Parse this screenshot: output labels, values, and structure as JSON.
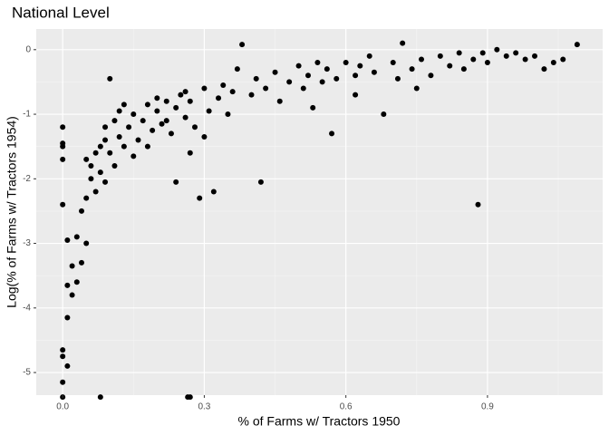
{
  "chart_data": {
    "type": "scatter",
    "title": "National Level",
    "x_label": "% of Farms w/ Tractors 1950",
    "y_label": "Log(% of Farms w/ Tractors 1954)",
    "color": "#000000",
    "xlim": [
      -0.056,
      1.144
    ],
    "ylim": [
      -5.35,
      0.32
    ],
    "xticks": [
      {
        "value": 0,
        "label": "0.0"
      },
      0.3,
      0.6,
      0.9
    ],
    "yticks": [
      0,
      -1,
      -2,
      -3,
      -4,
      -5
    ],
    "x_minor_grid": [
      0.15,
      0.45,
      0.75,
      1.05
    ],
    "y_minor_grid": [
      -0.5,
      -1.5,
      -2.5,
      -3.5,
      -4.5
    ],
    "grid": true,
    "x": [
      0.0,
      0.0,
      0.0,
      0.0,
      0.0,
      0.0,
      0.0,
      0.01,
      0.0,
      0.0,
      0.08,
      0.265,
      0.27,
      0.01,
      0.01,
      0.02,
      0.02,
      0.03,
      0.01,
      0.03,
      0.04,
      0.05,
      0.04,
      0.05,
      0.06,
      0.06,
      0.07,
      0.08,
      0.08,
      0.09,
      0.09,
      0.1,
      0.11,
      0.12,
      0.12,
      0.13,
      0.14,
      0.15,
      0.16,
      0.17,
      0.18,
      0.19,
      0.2,
      0.21,
      0.22,
      0.23,
      0.24,
      0.25,
      0.26,
      0.27,
      0.28,
      0.29,
      0.32,
      0.3,
      0.31,
      0.33,
      0.34,
      0.35,
      0.36,
      0.37,
      0.38,
      0.4,
      0.41,
      0.42,
      0.43,
      0.45,
      0.46,
      0.48,
      0.5,
      0.51,
      0.52,
      0.54,
      0.55,
      0.56,
      0.57,
      0.58,
      0.6,
      0.62,
      0.63,
      0.65,
      0.66,
      0.68,
      0.7,
      0.71,
      0.72,
      0.74,
      0.76,
      0.78,
      0.8,
      0.82,
      0.84,
      0.85,
      0.87,
      0.88,
      0.89,
      0.9,
      0.92,
      0.94,
      0.96,
      0.98,
      1.0,
      1.02,
      1.04,
      1.06,
      1.09,
      0.05,
      0.07,
      0.13,
      0.15,
      0.18,
      0.2,
      0.22,
      0.24,
      0.26,
      0.11,
      0.09,
      0.1,
      0.62,
      0.75,
      0.53,
      0.3,
      0.27
    ],
    "values": [
      -1.2,
      -1.45,
      -1.5,
      -1.7,
      -2.4,
      -4.65,
      -4.75,
      -4.9,
      -5.15,
      -5.38,
      -5.38,
      -5.38,
      -5.38,
      -4.15,
      -3.65,
      -3.8,
      -3.35,
      -3.6,
      -2.95,
      -2.9,
      -2.5,
      -2.3,
      -3.3,
      -3.0,
      -2.0,
      -1.8,
      -1.6,
      -1.9,
      -1.5,
      -1.4,
      -1.2,
      -1.6,
      -1.1,
      -1.35,
      -0.95,
      -1.5,
      -1.2,
      -1.0,
      -1.4,
      -1.1,
      -0.85,
      -1.25,
      -0.95,
      -1.15,
      -0.8,
      -1.3,
      -0.9,
      -0.7,
      -1.05,
      -0.8,
      -1.2,
      -2.3,
      -2.2,
      -0.6,
      -0.95,
      -0.75,
      -0.55,
      -1.0,
      -0.65,
      -0.3,
      0.08,
      -0.7,
      -0.45,
      -2.05,
      -0.6,
      -0.35,
      -0.8,
      -0.5,
      -0.25,
      -0.6,
      -0.4,
      -0.2,
      -0.5,
      -0.3,
      -1.3,
      -0.45,
      -0.2,
      -0.4,
      -0.25,
      -0.1,
      -0.35,
      -1.0,
      -0.2,
      -0.45,
      0.1,
      -0.3,
      -0.15,
      -0.4,
      -0.1,
      -0.25,
      -0.05,
      -0.3,
      -0.15,
      -2.4,
      -0.05,
      -0.2,
      0.0,
      -0.1,
      -0.05,
      -0.15,
      -0.1,
      -0.3,
      -0.2,
      -0.15,
      0.08,
      -1.7,
      -2.2,
      -0.85,
      -1.65,
      -1.5,
      -0.75,
      -1.1,
      -2.05,
      -0.65,
      -1.8,
      -2.05,
      -0.45,
      -0.7,
      -0.6,
      -0.9,
      -1.35,
      -1.6
    ]
  }
}
